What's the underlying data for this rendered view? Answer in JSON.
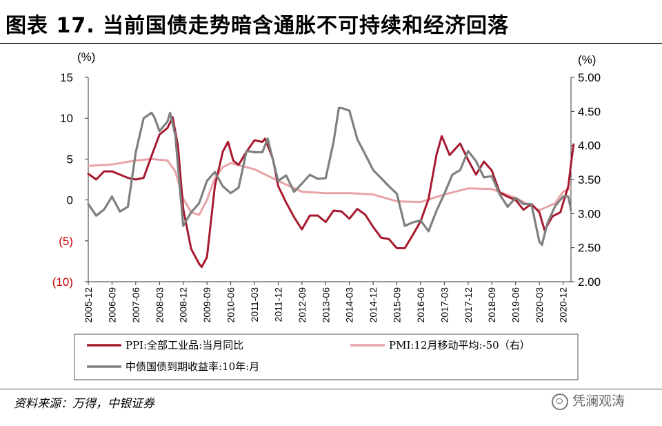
{
  "header": {
    "title": "图表 17. 当前国债走势暗含通胀不可持续和经济回落"
  },
  "footer": {
    "source": "资料来源：万得，中银证券",
    "watermark": "凭澜观涛"
  },
  "colors": {
    "ppi": "#a6192e",
    "pmi": "#e8a3a8",
    "bond": "#7f7f7f",
    "neg_tick": "#c00000"
  },
  "chart_data": {
    "type": "line",
    "left_axis": {
      "unit_label": "(%)",
      "range": [
        -10,
        15
      ],
      "ticks": [
        "15",
        "10",
        "5",
        "0",
        "(5)",
        "(10)"
      ],
      "tick_values": [
        15,
        10,
        5,
        0,
        -5,
        -10
      ]
    },
    "right_axis": {
      "unit_label": "(%)",
      "range": [
        2.0,
        5.0
      ],
      "ticks": [
        "5.00",
        "4.50",
        "4.00",
        "3.50",
        "3.00",
        "2.50",
        "2.00"
      ],
      "tick_values": [
        5.0,
        4.5,
        4.0,
        3.5,
        3.0,
        2.5,
        2.0
      ]
    },
    "x_tick_labels": [
      "2005-12",
      "2006-09",
      "2007-06",
      "2008-03",
      "2008-12",
      "2009-09",
      "2010-06",
      "2011-03",
      "2011-12",
      "2012-09",
      "2013-06",
      "2014-03",
      "2014-12",
      "2015-09",
      "2016-06",
      "2017-03",
      "2017-12",
      "2018-09",
      "2019-06",
      "2020-03",
      "2020-12"
    ],
    "x_range": [
      "2005-12",
      "2021-03"
    ],
    "legend_position": "bottom",
    "series": [
      {
        "name": "PPI:全部工业品:当月同比",
        "axis": "left",
        "points": [
          [
            "2005-12",
            3.2
          ],
          [
            "2006-03",
            2.5
          ],
          [
            "2006-06",
            3.5
          ],
          [
            "2006-09",
            3.5
          ],
          [
            "2006-12",
            3.1
          ],
          [
            "2007-03",
            2.7
          ],
          [
            "2007-06",
            2.5
          ],
          [
            "2007-09",
            2.7
          ],
          [
            "2007-12",
            5.4
          ],
          [
            "2008-03",
            8.0
          ],
          [
            "2008-06",
            8.8
          ],
          [
            "2008-08",
            10.1
          ],
          [
            "2008-10",
            6.6
          ],
          [
            "2008-12",
            -1.1
          ],
          [
            "2009-03",
            -6.0
          ],
          [
            "2009-06",
            -7.8
          ],
          [
            "2009-07",
            -8.2
          ],
          [
            "2009-09",
            -7.0
          ],
          [
            "2009-12",
            1.7
          ],
          [
            "2010-03",
            5.9
          ],
          [
            "2010-05",
            7.1
          ],
          [
            "2010-07",
            4.8
          ],
          [
            "2010-09",
            4.3
          ],
          [
            "2010-12",
            5.9
          ],
          [
            "2011-03",
            7.3
          ],
          [
            "2011-06",
            7.1
          ],
          [
            "2011-07",
            7.5
          ],
          [
            "2011-10",
            5.0
          ],
          [
            "2011-12",
            1.7
          ],
          [
            "2012-03",
            -0.3
          ],
          [
            "2012-06",
            -2.1
          ],
          [
            "2012-09",
            -3.6
          ],
          [
            "2012-12",
            -1.9
          ],
          [
            "2013-03",
            -1.9
          ],
          [
            "2013-06",
            -2.7
          ],
          [
            "2013-09",
            -1.3
          ],
          [
            "2013-12",
            -1.4
          ],
          [
            "2014-03",
            -2.3
          ],
          [
            "2014-06",
            -1.1
          ],
          [
            "2014-09",
            -1.8
          ],
          [
            "2014-12",
            -3.3
          ],
          [
            "2015-03",
            -4.6
          ],
          [
            "2015-06",
            -4.8
          ],
          [
            "2015-09",
            -5.9
          ],
          [
            "2015-12",
            -5.9
          ],
          [
            "2016-03",
            -4.3
          ],
          [
            "2016-06",
            -2.6
          ],
          [
            "2016-09",
            0.1
          ],
          [
            "2016-12",
            5.5
          ],
          [
            "2017-02",
            7.8
          ],
          [
            "2017-05",
            5.5
          ],
          [
            "2017-09",
            6.9
          ],
          [
            "2017-12",
            4.9
          ],
          [
            "2018-03",
            3.1
          ],
          [
            "2018-06",
            4.7
          ],
          [
            "2018-09",
            3.6
          ],
          [
            "2018-12",
            0.9
          ],
          [
            "2019-03",
            0.4
          ],
          [
            "2019-06",
            0.0
          ],
          [
            "2019-09",
            -1.2
          ],
          [
            "2019-12",
            -0.5
          ],
          [
            "2020-03",
            -1.5
          ],
          [
            "2020-05",
            -3.7
          ],
          [
            "2020-08",
            -2.0
          ],
          [
            "2020-11",
            -1.5
          ],
          [
            "2020-12",
            -0.4
          ],
          [
            "2021-02",
            1.7
          ],
          [
            "2021-03",
            4.4
          ],
          [
            "2021-04",
            6.8
          ]
        ]
      },
      {
        "name": "PMI:12月移动平均:-50（右）",
        "axis": "right",
        "points": [
          [
            "2005-12",
            3.7
          ],
          [
            "2006-09",
            3.72
          ],
          [
            "2007-06",
            3.78
          ],
          [
            "2007-12",
            3.8
          ],
          [
            "2008-06",
            3.78
          ],
          [
            "2008-09",
            3.62
          ],
          [
            "2008-12",
            3.22
          ],
          [
            "2009-03",
            3.02
          ],
          [
            "2009-06",
            2.98
          ],
          [
            "2009-09",
            3.2
          ],
          [
            "2009-12",
            3.52
          ],
          [
            "2010-03",
            3.68
          ],
          [
            "2010-06",
            3.74
          ],
          [
            "2011-03",
            3.65
          ],
          [
            "2011-12",
            3.48
          ],
          [
            "2012-09",
            3.32
          ],
          [
            "2013-06",
            3.3
          ],
          [
            "2014-03",
            3.3
          ],
          [
            "2014-12",
            3.28
          ],
          [
            "2015-09",
            3.18
          ],
          [
            "2016-06",
            3.17
          ],
          [
            "2017-03",
            3.28
          ],
          [
            "2017-12",
            3.37
          ],
          [
            "2018-09",
            3.36
          ],
          [
            "2019-06",
            3.23
          ],
          [
            "2020-03",
            3.05
          ],
          [
            "2020-09",
            3.15
          ],
          [
            "2020-12",
            3.32
          ],
          [
            "2021-03",
            3.37
          ]
        ]
      },
      {
        "name": "中债国债到期收益率:10年:月",
        "axis": "right",
        "points": [
          [
            "2005-12",
            3.14
          ],
          [
            "2006-03",
            2.97
          ],
          [
            "2006-06",
            3.06
          ],
          [
            "2006-09",
            3.25
          ],
          [
            "2006-12",
            3.03
          ],
          [
            "2007-03",
            3.1
          ],
          [
            "2007-06",
            3.9
          ],
          [
            "2007-09",
            4.4
          ],
          [
            "2007-12",
            4.48
          ],
          [
            "2008-01",
            4.42
          ],
          [
            "2008-03",
            4.21
          ],
          [
            "2008-06",
            4.35
          ],
          [
            "2008-07",
            4.48
          ],
          [
            "2008-09",
            4.15
          ],
          [
            "2008-12",
            2.82
          ],
          [
            "2009-03",
            3.02
          ],
          [
            "2009-06",
            3.15
          ],
          [
            "2009-09",
            3.48
          ],
          [
            "2009-12",
            3.61
          ],
          [
            "2010-03",
            3.4
          ],
          [
            "2010-06",
            3.3
          ],
          [
            "2010-09",
            3.38
          ],
          [
            "2010-12",
            3.92
          ],
          [
            "2011-03",
            3.9
          ],
          [
            "2011-06",
            3.9
          ],
          [
            "2011-08",
            4.1
          ],
          [
            "2011-12",
            3.48
          ],
          [
            "2012-03",
            3.56
          ],
          [
            "2012-06",
            3.32
          ],
          [
            "2012-09",
            3.44
          ],
          [
            "2012-12",
            3.57
          ],
          [
            "2013-03",
            3.51
          ],
          [
            "2013-06",
            3.52
          ],
          [
            "2013-09",
            4.05
          ],
          [
            "2013-11",
            4.55
          ],
          [
            "2013-12",
            4.55
          ],
          [
            "2014-03",
            4.51
          ],
          [
            "2014-06",
            4.09
          ],
          [
            "2014-09",
            3.87
          ],
          [
            "2014-12",
            3.64
          ],
          [
            "2015-03",
            3.52
          ],
          [
            "2015-06",
            3.4
          ],
          [
            "2015-09",
            3.29
          ],
          [
            "2015-12",
            2.82
          ],
          [
            "2016-03",
            2.87
          ],
          [
            "2016-06",
            2.9
          ],
          [
            "2016-09",
            2.74
          ],
          [
            "2016-12",
            3.04
          ],
          [
            "2017-03",
            3.29
          ],
          [
            "2017-06",
            3.57
          ],
          [
            "2017-09",
            3.64
          ],
          [
            "2017-12",
            3.92
          ],
          [
            "2018-03",
            3.77
          ],
          [
            "2018-06",
            3.53
          ],
          [
            "2018-09",
            3.55
          ],
          [
            "2018-12",
            3.28
          ],
          [
            "2019-03",
            3.1
          ],
          [
            "2019-06",
            3.23
          ],
          [
            "2019-09",
            3.14
          ],
          [
            "2019-12",
            3.14
          ],
          [
            "2020-03",
            2.59
          ],
          [
            "2020-04",
            2.54
          ],
          [
            "2020-06",
            2.85
          ],
          [
            "2020-09",
            3.11
          ],
          [
            "2020-12",
            3.25
          ],
          [
            "2021-02",
            3.25
          ],
          [
            "2021-03",
            3.05
          ]
        ]
      }
    ]
  }
}
